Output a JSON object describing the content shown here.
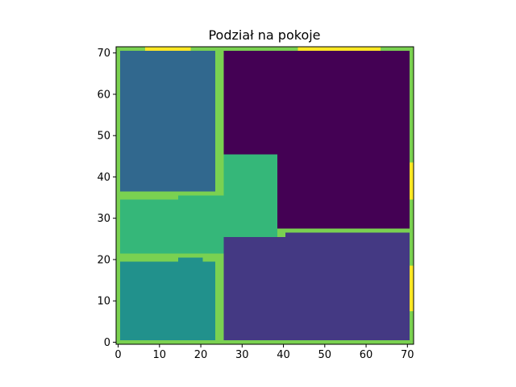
{
  "chart_data": {
    "type": "heatmap",
    "title": "Podział na pokoje",
    "xlabel": "",
    "ylabel": "",
    "xlim": [
      -0.5,
      71.5
    ],
    "ylim": [
      -0.5,
      71.5
    ],
    "y_direction": "up",
    "grid": false,
    "legend": "none",
    "colormap": "viridis",
    "xticks": [
      0,
      10,
      20,
      30,
      40,
      50,
      60,
      70
    ],
    "yticks": [
      0,
      10,
      20,
      30,
      40,
      50,
      60,
      70
    ],
    "background_value_color": "#7ad151",
    "regions": [
      {
        "kind": "room",
        "color": "#440154",
        "x": [
          25.5,
          70.5
        ],
        "y": [
          27.5,
          70.5
        ]
      },
      {
        "kind": "room",
        "color": "#31688e",
        "x": [
          0.5,
          23.5
        ],
        "y": [
          36.5,
          70.5
        ]
      },
      {
        "kind": "room",
        "color": "#35b779",
        "x": [
          25.5,
          38.5
        ],
        "y": [
          20.5,
          45.5
        ]
      },
      {
        "kind": "room",
        "color": "#35b779",
        "x": [
          0.5,
          25.5
        ],
        "y": [
          21.5,
          34.5
        ]
      },
      {
        "kind": "room",
        "color": "#35b779",
        "x": [
          14.5,
          25.5
        ],
        "y": [
          21.5,
          35.5
        ]
      },
      {
        "kind": "room",
        "color": "#35b779",
        "x": [
          20.5,
          25.5
        ],
        "y": [
          21.5,
          22.5
        ]
      },
      {
        "kind": "room",
        "color": "#21918c",
        "x": [
          0.5,
          23.5
        ],
        "y": [
          0.5,
          19.5
        ]
      },
      {
        "kind": "room",
        "color": "#21918c",
        "x": [
          14.5,
          20.5
        ],
        "y": [
          19.5,
          20.5
        ]
      },
      {
        "kind": "room",
        "color": "#443983",
        "x": [
          25.5,
          70.5
        ],
        "y": [
          0.5,
          25.5
        ]
      },
      {
        "kind": "room",
        "color": "#443983",
        "x": [
          40.5,
          70.5
        ],
        "y": [
          25.5,
          26.5
        ]
      },
      {
        "kind": "room",
        "color": "#443983",
        "x": [
          25.5,
          34.5
        ],
        "y": [
          19.5,
          20.5
        ]
      },
      {
        "kind": "door",
        "color": "#fde725",
        "x": [
          6.5,
          17.5
        ],
        "y": [
          70.5,
          71.5
        ]
      },
      {
        "kind": "door",
        "color": "#fde725",
        "x": [
          43.5,
          63.5
        ],
        "y": [
          70.5,
          71.5
        ]
      },
      {
        "kind": "door",
        "color": "#fde725",
        "x": [
          70.5,
          71.5
        ],
        "y": [
          34.5,
          43.5
        ]
      },
      {
        "kind": "door",
        "color": "#fde725",
        "x": [
          70.5,
          71.5
        ],
        "y": [
          7.5,
          18.5
        ]
      }
    ]
  }
}
